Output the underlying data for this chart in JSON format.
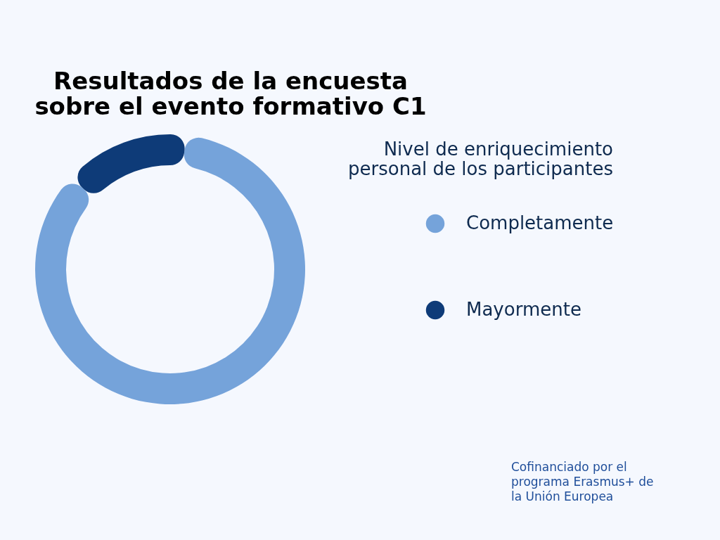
{
  "chart_data": {
    "type": "donut",
    "title": "Resultados de la encuesta sobre el evento formativo C1",
    "legend_title": "Nivel de enriquecimiento personal de los participantes",
    "categories": [
      "Completamente",
      "Mayormente"
    ],
    "values": [
      85,
      15
    ],
    "colors": [
      "#75a3da",
      "#0e3b78"
    ],
    "legend": "right",
    "annotations": [
      "Cofinanciado por el programa Erasmus+ de la Unión Europea"
    ]
  }
}
